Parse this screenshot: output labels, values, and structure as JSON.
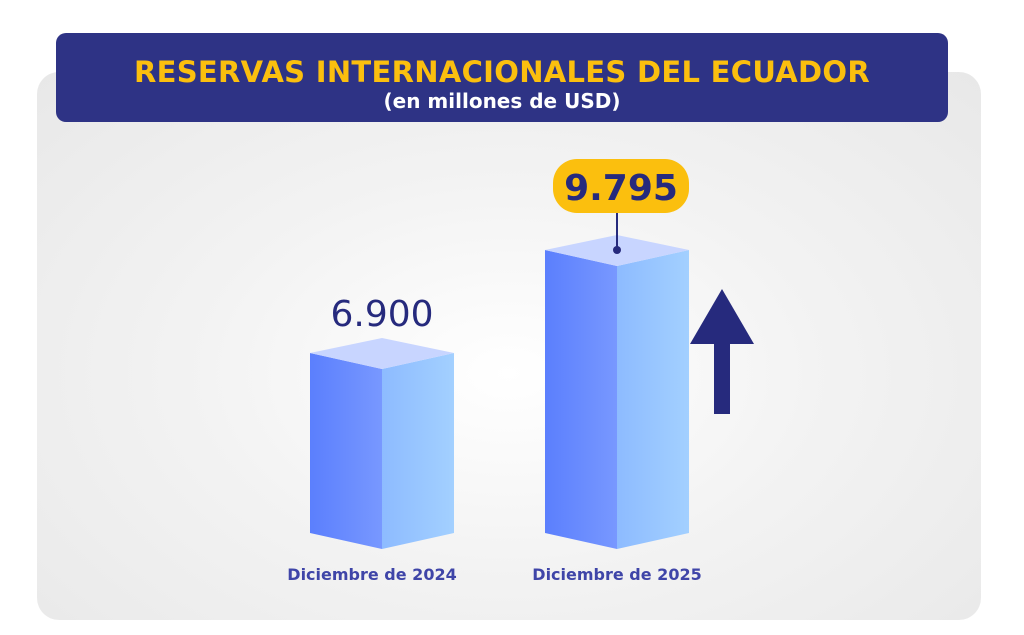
{
  "chart_data": {
    "type": "bar",
    "title": "RESERVAS INTERNACIONALES DEL ECUADOR",
    "subtitle": "(en millones de USD)",
    "categories": [
      "Diciembre de 2024",
      "Diciembre de 2025"
    ],
    "values": [
      6900,
      9795
    ],
    "value_labels": [
      "6.900",
      "9.795"
    ],
    "xlabel": "",
    "ylabel": "",
    "grid": false,
    "annotation": "up-arrow-trend",
    "colors": {
      "header": "#2e3385",
      "title": "#fbbf0e",
      "badge": "#fbbf0e",
      "text": "#262a7d",
      "label": "#3f45a8",
      "bar_left": "#5b7ffd",
      "bar_right": "#a0cdff",
      "bar_top": "#c8d5ff"
    }
  }
}
